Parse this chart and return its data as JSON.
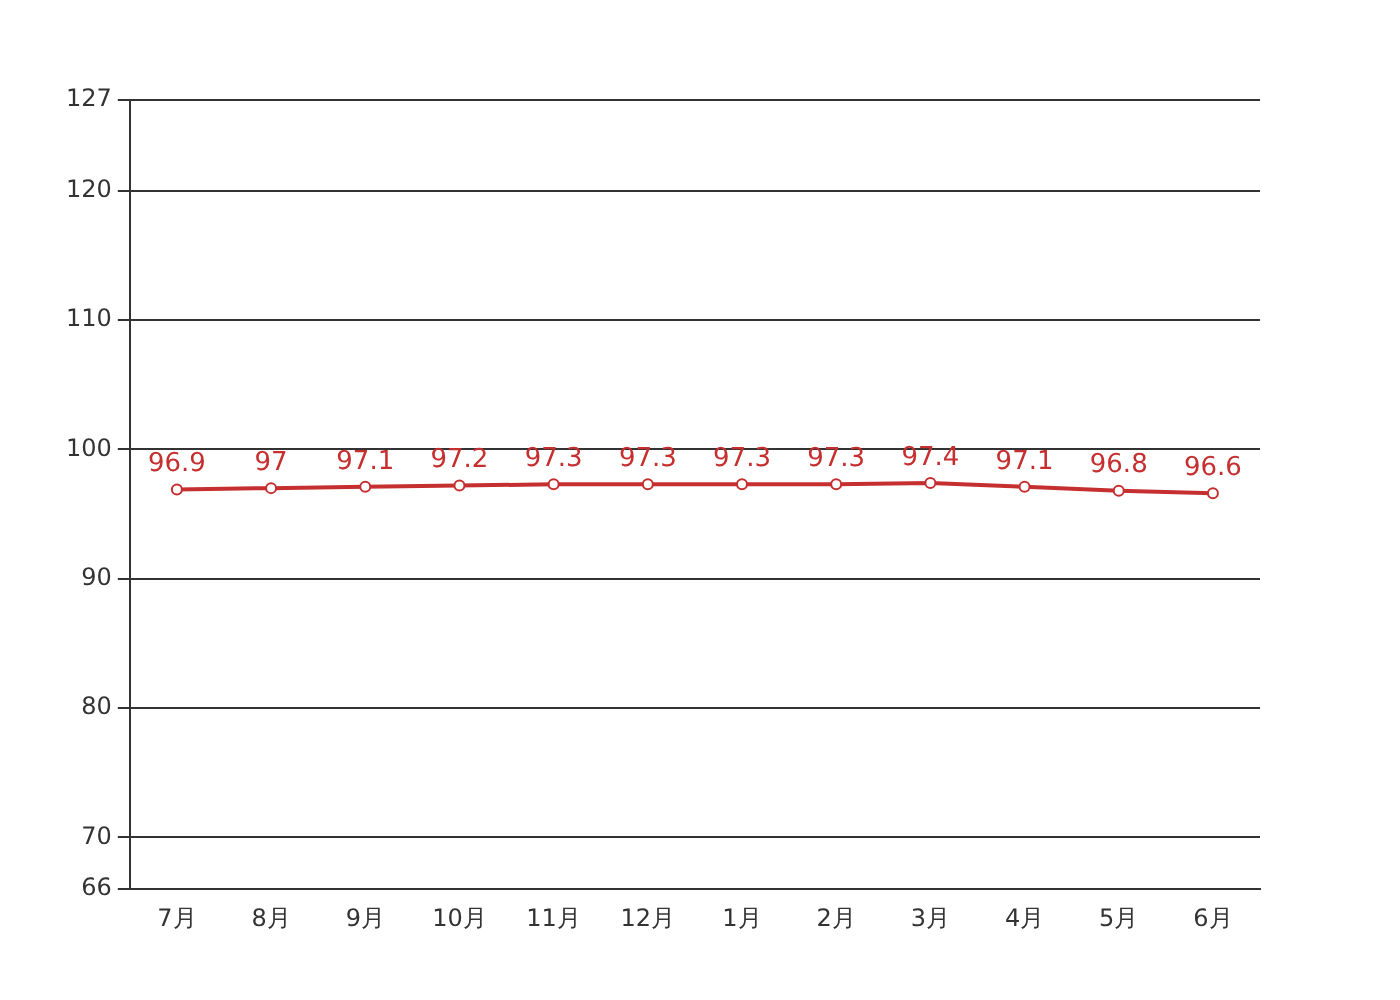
{
  "chart_data": {
    "type": "line",
    "categories": [
      "7月",
      "8月",
      "9月",
      "10月",
      "11月",
      "12月",
      "1月",
      "2月",
      "3月",
      "4月",
      "5月",
      "6月"
    ],
    "series": [
      {
        "color": "#c62f2f",
        "values": [
          96.9,
          97,
          97.1,
          97.2,
          97.3,
          97.3,
          97.3,
          97.3,
          97.4,
          97.1,
          96.8,
          96.6
        ]
      }
    ],
    "ylim": [
      66,
      127
    ],
    "yticks": [
      66,
      70,
      80,
      90,
      100,
      110,
      120,
      127
    ],
    "grid": "y",
    "marker": "circle",
    "line_style": "solid",
    "data_labels": true,
    "legend": false
  }
}
